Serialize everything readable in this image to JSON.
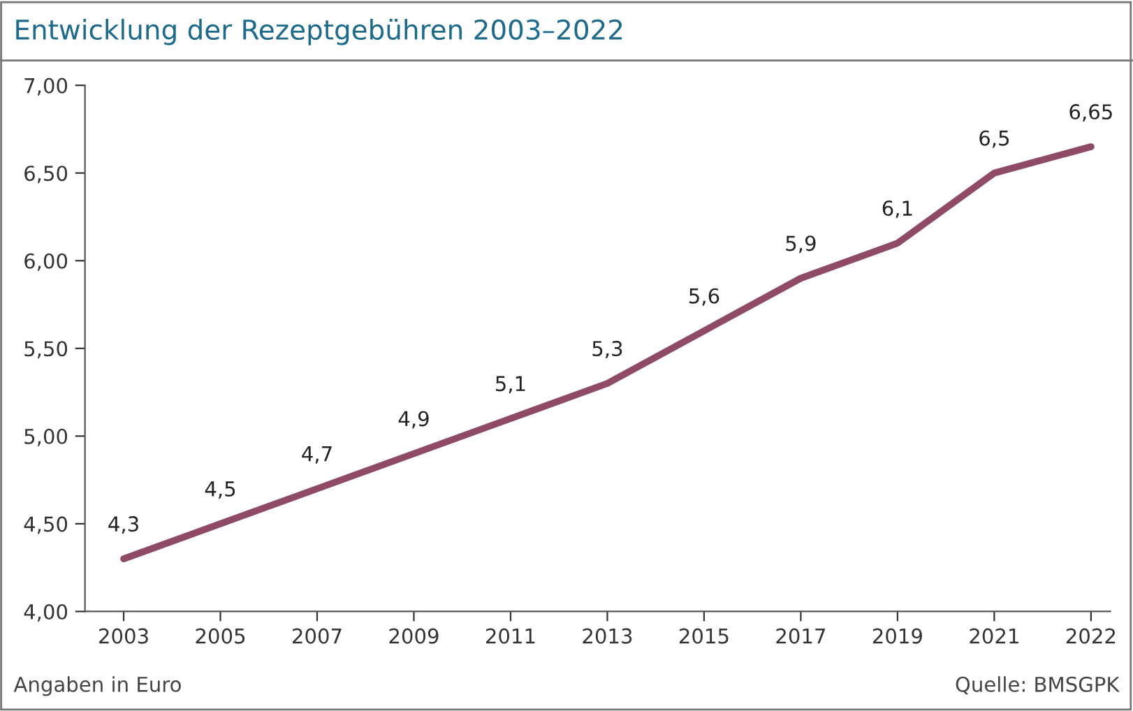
{
  "chart_data": {
    "type": "line",
    "title": "Entwicklung der Rezeptgebühren 2003–2022",
    "categories": [
      "2003",
      "2005",
      "2007",
      "2009",
      "2011",
      "2013",
      "2015",
      "2017",
      "2019",
      "2021",
      "2022"
    ],
    "series": [
      {
        "color": "#8e4a66",
        "values": [
          4.3,
          4.5,
          4.7,
          4.9,
          5.1,
          5.3,
          5.6,
          5.9,
          6.1,
          6.5,
          6.65
        ],
        "value_labels": [
          "4,3",
          "4,5",
          "4,7",
          "4,9",
          "5,1",
          "5,3",
          "5,6",
          "5,9",
          "6,1",
          "6,5",
          "6,65"
        ]
      }
    ],
    "ylim": [
      4.0,
      7.0
    ],
    "yticks": [
      {
        "value": 4.0,
        "label": "4,00"
      },
      {
        "value": 4.5,
        "label": "4,50"
      },
      {
        "value": 5.0,
        "label": "5,00"
      },
      {
        "value": 5.5,
        "label": "5,50"
      },
      {
        "value": 6.0,
        "label": "6,00"
      },
      {
        "value": 6.5,
        "label": "6,50"
      },
      {
        "value": 7.0,
        "label": "7,00"
      }
    ],
    "grid": false,
    "legend": false,
    "marker": "none",
    "line_style": "solid",
    "annotations": [
      "Angaben in Euro",
      "Quelle: BMSGPK"
    ]
  }
}
